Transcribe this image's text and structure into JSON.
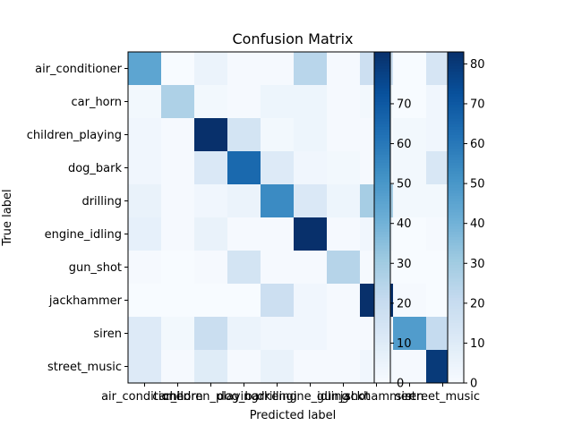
{
  "chart_data": {
    "type": "heatmap",
    "title": "Confusion Matrix",
    "xlabel": "Predicted label",
    "ylabel": "True label",
    "classes": [
      "air_conditioner",
      "car_horn",
      "children_playing",
      "dog_bark",
      "drilling",
      "engine_idling",
      "gun_shot",
      "jackhammer",
      "siren",
      "street_music"
    ],
    "matrix": [
      [
        45,
        0,
        5,
        1,
        1,
        24,
        1,
        18,
        0,
        14
      ],
      [
        2,
        27,
        2,
        1,
        4,
        4,
        1,
        2,
        0,
        3
      ],
      [
        3,
        1,
        83,
        15,
        2,
        4,
        1,
        1,
        2,
        3
      ],
      [
        3,
        1,
        12,
        65,
        11,
        3,
        2,
        1,
        2,
        13
      ],
      [
        6,
        1,
        3,
        5,
        54,
        12,
        4,
        29,
        2,
        2
      ],
      [
        7,
        1,
        6,
        1,
        1,
        83,
        1,
        3,
        0,
        1
      ],
      [
        1,
        0,
        1,
        15,
        1,
        1,
        25,
        1,
        0,
        0
      ],
      [
        0,
        0,
        0,
        0,
        18,
        3,
        1,
        83,
        1,
        0
      ],
      [
        11,
        2,
        19,
        5,
        3,
        3,
        1,
        1,
        48,
        21
      ],
      [
        11,
        1,
        10,
        1,
        6,
        1,
        1,
        3,
        1,
        80
      ]
    ],
    "colormap": "Blues",
    "vmin": 0,
    "vmax": 83,
    "colorbars": [
      {
        "ticks": [
          0,
          10,
          20,
          30,
          40,
          50,
          60,
          70
        ]
      },
      {
        "ticks": [
          0,
          10,
          20,
          30,
          40,
          50,
          60,
          70,
          80
        ]
      }
    ]
  }
}
